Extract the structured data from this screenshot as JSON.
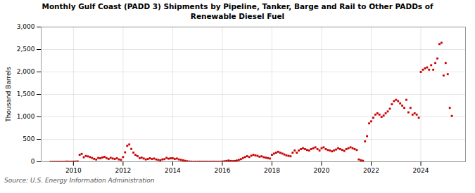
{
  "chart_data": {
    "type": "scatter",
    "title": "Monthly Gulf Coast (PADD 3) Shipments by Pipeline, Tanker, Barge and Rail to Other PADDs of\nRenewable Diesel Fuel",
    "ylabel": "Thousand Barrels",
    "source": "Source: U.S. Energy Information Administration",
    "color": "#cc0000",
    "marker": "square",
    "grid": true,
    "xlim": [
      2008.7,
      2025.8
    ],
    "xticks": [
      2010,
      2012,
      2014,
      2016,
      2018,
      2020,
      2022,
      2024
    ],
    "ylim": [
      0,
      3000
    ],
    "yticks": [
      0,
      500,
      {
        "value": 1000,
        "label": "1,000"
      },
      {
        "value": 1500,
        "label": "1,500"
      },
      {
        "value": 2000,
        "label": "2,000"
      },
      {
        "value": 2500,
        "label": "2,500"
      },
      {
        "value": 3000,
        "label": "3,000"
      }
    ],
    "x": [
      2009.083,
      2009.167,
      2009.25,
      2009.333,
      2009.417,
      2009.5,
      2009.583,
      2009.667,
      2009.75,
      2009.833,
      2009.917,
      2010.0,
      2010.083,
      2010.167,
      2010.25,
      2010.333,
      2010.417,
      2010.5,
      2010.583,
      2010.667,
      2010.75,
      2010.833,
      2010.917,
      2011.0,
      2011.083,
      2011.167,
      2011.25,
      2011.333,
      2011.417,
      2011.5,
      2011.583,
      2011.667,
      2011.75,
      2011.833,
      2011.917,
      2012.0,
      2012.083,
      2012.167,
      2012.25,
      2012.333,
      2012.417,
      2012.5,
      2012.583,
      2012.667,
      2012.75,
      2012.833,
      2012.917,
      2013.0,
      2013.083,
      2013.167,
      2013.25,
      2013.333,
      2013.417,
      2013.5,
      2013.583,
      2013.667,
      2013.75,
      2013.833,
      2013.917,
      2014.0,
      2014.083,
      2014.167,
      2014.25,
      2014.333,
      2014.417,
      2014.5,
      2014.583,
      2014.667,
      2014.75,
      2014.833,
      2014.917,
      2015.0,
      2015.083,
      2015.167,
      2015.25,
      2015.333,
      2015.417,
      2015.5,
      2015.583,
      2015.667,
      2015.75,
      2015.833,
      2015.917,
      2016.0,
      2016.083,
      2016.167,
      2016.25,
      2016.333,
      2016.417,
      2016.5,
      2016.583,
      2016.667,
      2016.75,
      2016.833,
      2016.917,
      2017.0,
      2017.083,
      2017.167,
      2017.25,
      2017.333,
      2017.417,
      2017.5,
      2017.583,
      2017.667,
      2017.75,
      2017.833,
      2017.917,
      2018.0,
      2018.083,
      2018.167,
      2018.25,
      2018.333,
      2018.417,
      2018.5,
      2018.583,
      2018.667,
      2018.75,
      2018.833,
      2018.917,
      2019.0,
      2019.083,
      2019.167,
      2019.25,
      2019.333,
      2019.417,
      2019.5,
      2019.583,
      2019.667,
      2019.75,
      2019.833,
      2019.917,
      2020.0,
      2020.083,
      2020.167,
      2020.25,
      2020.333,
      2020.417,
      2020.5,
      2020.583,
      2020.667,
      2020.75,
      2020.833,
      2020.917,
      2021.0,
      2021.083,
      2021.167,
      2021.25,
      2021.333,
      2021.417,
      2021.5,
      2021.583,
      2021.667,
      2021.75,
      2021.833,
      2021.917,
      2022.0,
      2022.083,
      2022.167,
      2022.25,
      2022.333,
      2022.417,
      2022.5,
      2022.583,
      2022.667,
      2022.75,
      2022.833,
      2022.917,
      2023.0,
      2023.083,
      2023.167,
      2023.25,
      2023.333,
      2023.417,
      2023.5,
      2023.583,
      2023.667,
      2023.75,
      2023.833,
      2023.917,
      2024.0,
      2024.083,
      2024.167,
      2024.25,
      2024.333,
      2024.417,
      2024.5,
      2024.583,
      2024.667,
      2024.75,
      2024.833,
      2024.917,
      2025.0,
      2025.083,
      2025.167,
      2025.25
    ],
    "values": [
      0,
      0,
      0,
      0,
      0,
      0,
      0,
      2,
      4,
      2,
      2,
      3,
      5,
      8,
      155,
      175,
      100,
      130,
      120,
      105,
      85,
      65,
      50,
      85,
      78,
      95,
      110,
      82,
      62,
      88,
      72,
      62,
      78,
      52,
      42,
      105,
      210,
      355,
      385,
      285,
      205,
      155,
      125,
      82,
      92,
      72,
      52,
      62,
      78,
      62,
      72,
      52,
      42,
      32,
      52,
      58,
      88,
      68,
      78,
      78,
      62,
      72,
      52,
      42,
      32,
      22,
      12,
      5,
      3,
      2,
      2,
      2,
      2,
      2,
      2,
      2,
      2,
      2,
      2,
      2,
      2,
      2,
      2,
      5,
      12,
      18,
      28,
      18,
      14,
      18,
      28,
      42,
      58,
      82,
      105,
      125,
      105,
      135,
      155,
      142,
      132,
      112,
      122,
      102,
      92,
      82,
      72,
      155,
      182,
      202,
      222,
      202,
      182,
      162,
      142,
      132,
      122,
      202,
      252,
      202,
      252,
      282,
      302,
      282,
      262,
      252,
      282,
      302,
      322,
      282,
      252,
      302,
      322,
      282,
      262,
      252,
      232,
      252,
      272,
      302,
      282,
      262,
      242,
      282,
      302,
      322,
      302,
      282,
      262,
      52,
      32,
      22,
      455,
      570,
      855,
      900,
      980,
      1050,
      1080,
      1050,
      1000,
      1030,
      1080,
      1120,
      1180,
      1280,
      1350,
      1380,
      1350,
      1300,
      1250,
      1200,
      1380,
      1100,
      1200,
      1050,
      1080,
      1050,
      980,
      2000,
      2050,
      2080,
      2100,
      2050,
      2150,
      2050,
      2200,
      2300,
      2620,
      2650,
      1920,
      2200,
      1950,
      1200,
      1020
    ]
  }
}
